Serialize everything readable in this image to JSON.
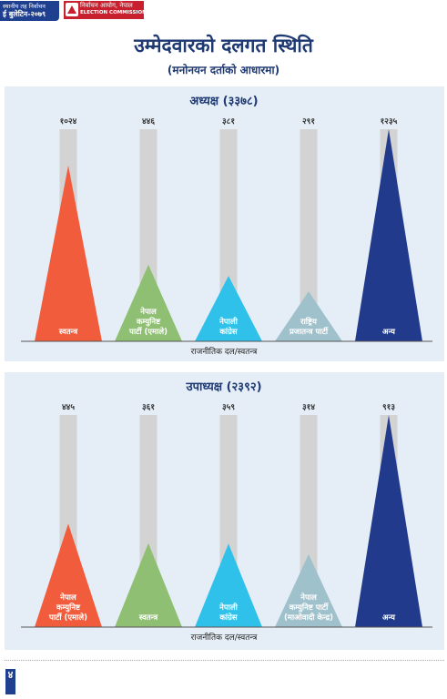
{
  "header": {
    "bulletin_line1": "स्थानीय तह निर्वाचन",
    "bulletin_line2": "ई बुलेटिन-२०७९",
    "commission_nepali": "निर्वाचन आयोग, नेपाल",
    "commission_english": "ELECTION COMMISSION, NEPAL"
  },
  "title": "उम्मेदवारको दलगत स्थिति",
  "subtitle": "(मनोनयन दर्ताको आधारमा)",
  "page_number": "४",
  "colors": {
    "bg_panel": "#e5eef7",
    "column_track": "#d3d3d3",
    "title_blue": "#1f3a73",
    "header_blue": "#1f3f8f",
    "header_red": "#c8202e"
  },
  "chart_data": [
    {
      "type": "bar",
      "title": "अध्यक्ष (३३७८)",
      "xlabel": "राजनीतिक दल/स्वतन्त्र",
      "ylabel": "",
      "ylim": [
        0,
        1235
      ],
      "grid": false,
      "categories": [
        [
          "स्वतन्त्र"
        ],
        [
          "नेपाल",
          "कम्युनिष्ट",
          "पार्टी (एमाले)"
        ],
        [
          "नेपाली",
          "कांग्रेस"
        ],
        [
          "राष्ट्रिय",
          "प्रजातन्त्र पार्टी"
        ],
        [
          "अन्य"
        ]
      ],
      "value_labels": [
        "१०२४",
        "४४६",
        "३८१",
        "२९१",
        "१२३५"
      ],
      "values": [
        1024,
        446,
        381,
        291,
        1235
      ],
      "colors": [
        "#f15d3c",
        "#8fbf72",
        "#2fc1ea",
        "#9fc1cc",
        "#223a8c"
      ]
    },
    {
      "type": "bar",
      "title": "उपाध्यक्ष (२३९२)",
      "xlabel": "राजनीतिक दल/स्वतन्त्र",
      "ylabel": "",
      "ylim": [
        0,
        913
      ],
      "grid": false,
      "categories": [
        [
          "नेपाल",
          "कम्युनिष्ट",
          "पार्टी (एमाले)"
        ],
        [
          "स्वतन्त्र"
        ],
        [
          "नेपाली",
          "कांग्रेस"
        ],
        [
          "नेपाल",
          "कम्युनिष्ट पार्टी",
          "(माओवादी केन्द्र)"
        ],
        [
          "अन्य"
        ]
      ],
      "value_labels": [
        "४४५",
        "३६१",
        "३५९",
        "३१४",
        "९१३"
      ],
      "values": [
        445,
        361,
        359,
        314,
        913
      ],
      "colors": [
        "#f15d3c",
        "#8fbf72",
        "#2fc1ea",
        "#9fc1cc",
        "#223a8c"
      ]
    }
  ]
}
